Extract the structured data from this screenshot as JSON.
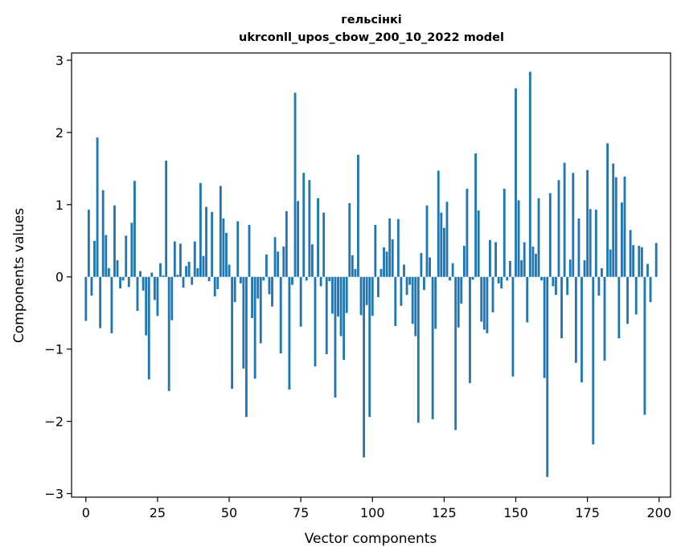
{
  "chart_data": {
    "type": "bar",
    "title_line1": "гельсінкі",
    "title_line2": "ukrconll_upos_cbow_200_10_2022 model",
    "xlabel": "Vector components",
    "ylabel": "Components values",
    "xlim": [
      -5,
      204
    ],
    "ylim": [
      -3.05,
      3.1
    ],
    "xticks": [
      0,
      25,
      50,
      75,
      100,
      125,
      150,
      175,
      200
    ],
    "yticks": [
      -3,
      -2,
      -1,
      0,
      1,
      2,
      3
    ],
    "ytick_labels": [
      "−3",
      "−2",
      "−1",
      "0",
      "1",
      "2",
      "3"
    ],
    "grid": false,
    "bar_color": "#1f77b4",
    "values": [
      -0.61,
      0.93,
      -0.26,
      0.5,
      1.93,
      -0.71,
      1.2,
      0.58,
      0.12,
      -0.78,
      0.99,
      0.23,
      -0.16,
      -0.05,
      0.57,
      -0.14,
      0.75,
      1.33,
      -0.47,
      0.08,
      -0.19,
      -0.81,
      -1.42,
      0.06,
      -0.32,
      -0.54,
      0.19,
      0.02,
      1.61,
      -1.58,
      -0.6,
      0.49,
      0.03,
      0.46,
      -0.15,
      0.15,
      0.21,
      -0.11,
      0.49,
      0.12,
      1.3,
      0.29,
      0.97,
      -0.06,
      0.9,
      -0.27,
      -0.17,
      1.26,
      0.81,
      0.61,
      0.17,
      -1.55,
      -0.35,
      0.77,
      -0.09,
      -1.27,
      -1.94,
      0.72,
      -0.57,
      -1.41,
      -0.3,
      -0.92,
      -0.05,
      0.31,
      -0.24,
      -0.41,
      0.55,
      0.35,
      -1.06,
      0.42,
      0.91,
      -1.56,
      -0.11,
      2.55,
      1.05,
      -0.69,
      1.44,
      -0.05,
      1.34,
      0.45,
      -1.24,
      1.09,
      -0.13,
      0.89,
      -1.07,
      -0.06,
      -0.51,
      -1.67,
      -0.55,
      -0.82,
      -1.15,
      -0.5,
      1.02,
      0.3,
      0.11,
      1.69,
      -0.53,
      -2.5,
      -0.39,
      -1.94,
      -0.54,
      0.72,
      -0.28,
      0.11,
      0.41,
      0.35,
      0.81,
      0.52,
      -0.68,
      0.8,
      -0.4,
      0.17,
      -0.25,
      -0.11,
      -0.65,
      -0.82,
      -2.02,
      0.33,
      -0.18,
      0.99,
      0.27,
      -1.97,
      -0.72,
      1.47,
      0.89,
      0.68,
      1.04,
      -0.05,
      0.19,
      -2.12,
      -0.7,
      -0.37,
      0.43,
      1.22,
      -1.47,
      -0.04,
      1.71,
      0.92,
      -0.62,
      -0.73,
      -0.78,
      0.51,
      -0.49,
      0.48,
      -0.09,
      -0.16,
      1.22,
      -0.05,
      0.22,
      -1.38,
      2.61,
      1.06,
      0.23,
      0.48,
      -0.63,
      2.84,
      0.42,
      0.32,
      1.09,
      -0.05,
      -1.4,
      -2.77,
      1.16,
      -0.13,
      -0.25,
      1.34,
      -0.85,
      1.58,
      -0.25,
      0.24,
      1.44,
      -1.19,
      0.81,
      -1.46,
      0.23,
      1.48,
      0.94,
      -2.32,
      0.93,
      -0.26,
      0.12,
      -1.16,
      1.85,
      0.38,
      1.57,
      1.38,
      -0.85,
      1.03,
      1.39,
      -0.65,
      0.65,
      0.44,
      -0.52,
      0.43,
      0.41,
      -1.91,
      0.18,
      -0.35,
      0.0,
      0.47
    ]
  }
}
